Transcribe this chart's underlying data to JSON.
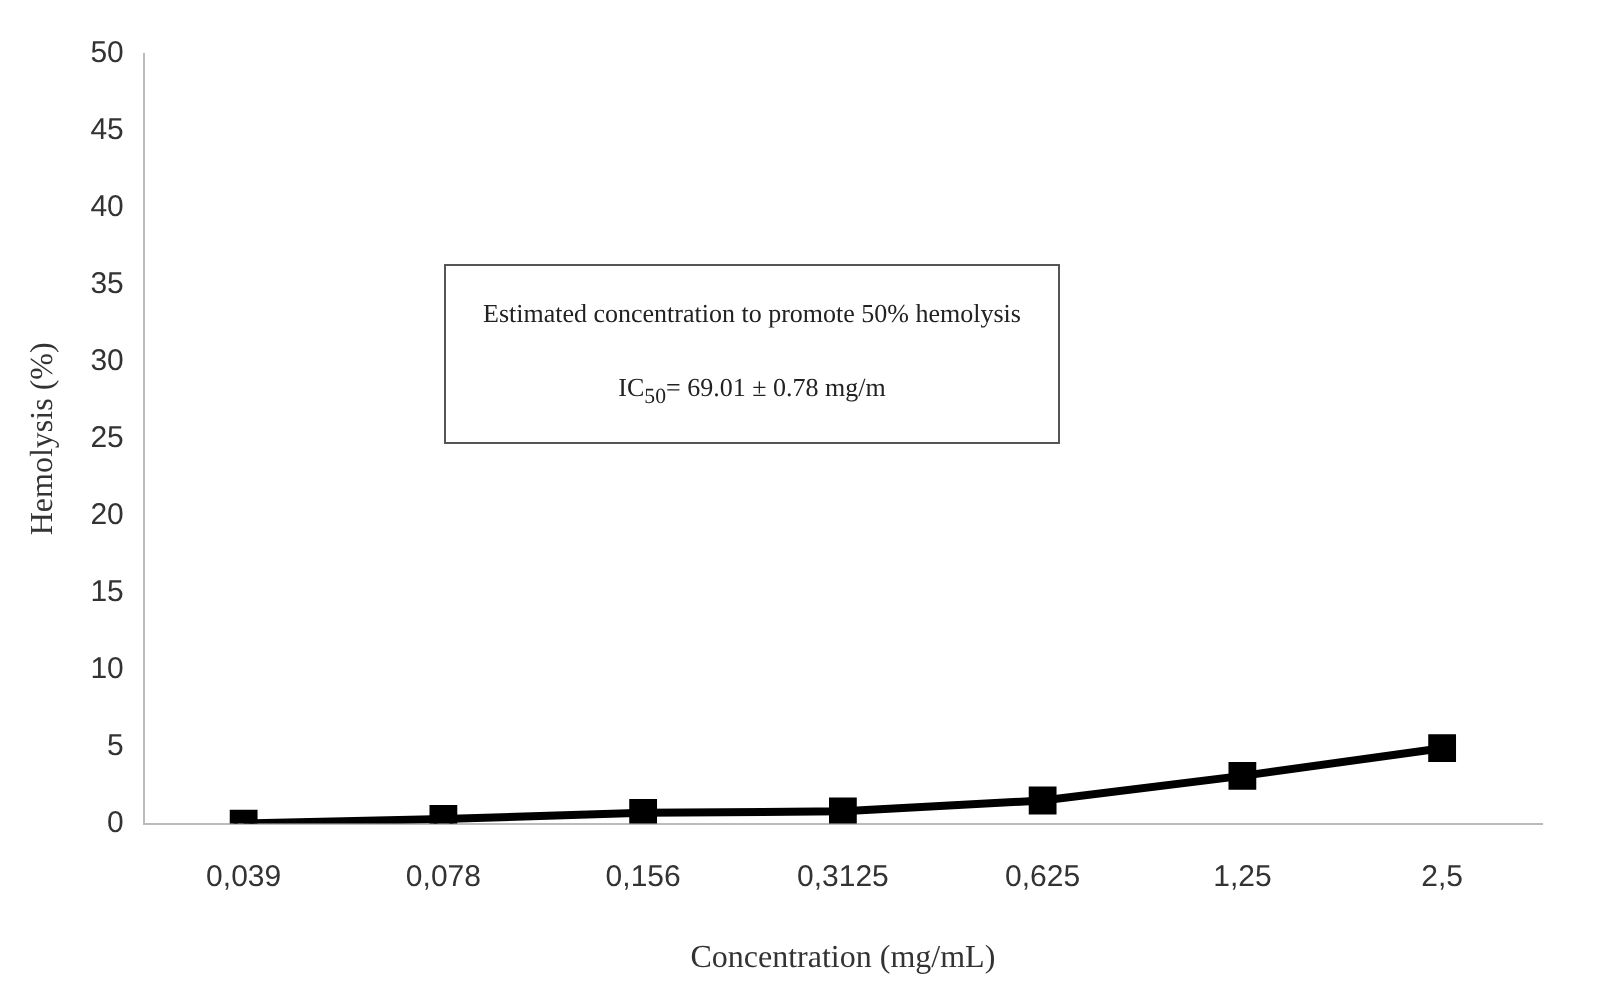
{
  "chart_data": {
    "type": "line",
    "xlabel": "Concentration (mg/mL)",
    "ylabel": "Hemolysis (%)",
    "categories": [
      "0,039",
      "0,078",
      "0,156",
      "0,3125",
      "0,625",
      "1,25",
      "2,5"
    ],
    "series": [
      {
        "color": "#000000",
        "values": [
          0,
          0.3,
          0.7,
          0.8,
          1.5,
          3.1,
          4.9
        ]
      }
    ],
    "ylim": [
      0,
      50
    ],
    "yticks": [
      0,
      5,
      10,
      15,
      20,
      25,
      30,
      35,
      40,
      45,
      50
    ],
    "grid": false,
    "legend": false,
    "marker": "square",
    "line_style": "solid",
    "annotations": [
      "Estimated concentration to promote 50% hemolysis",
      "IC$_{50}$= 69.01 ± 0.78 mg/m"
    ]
  }
}
